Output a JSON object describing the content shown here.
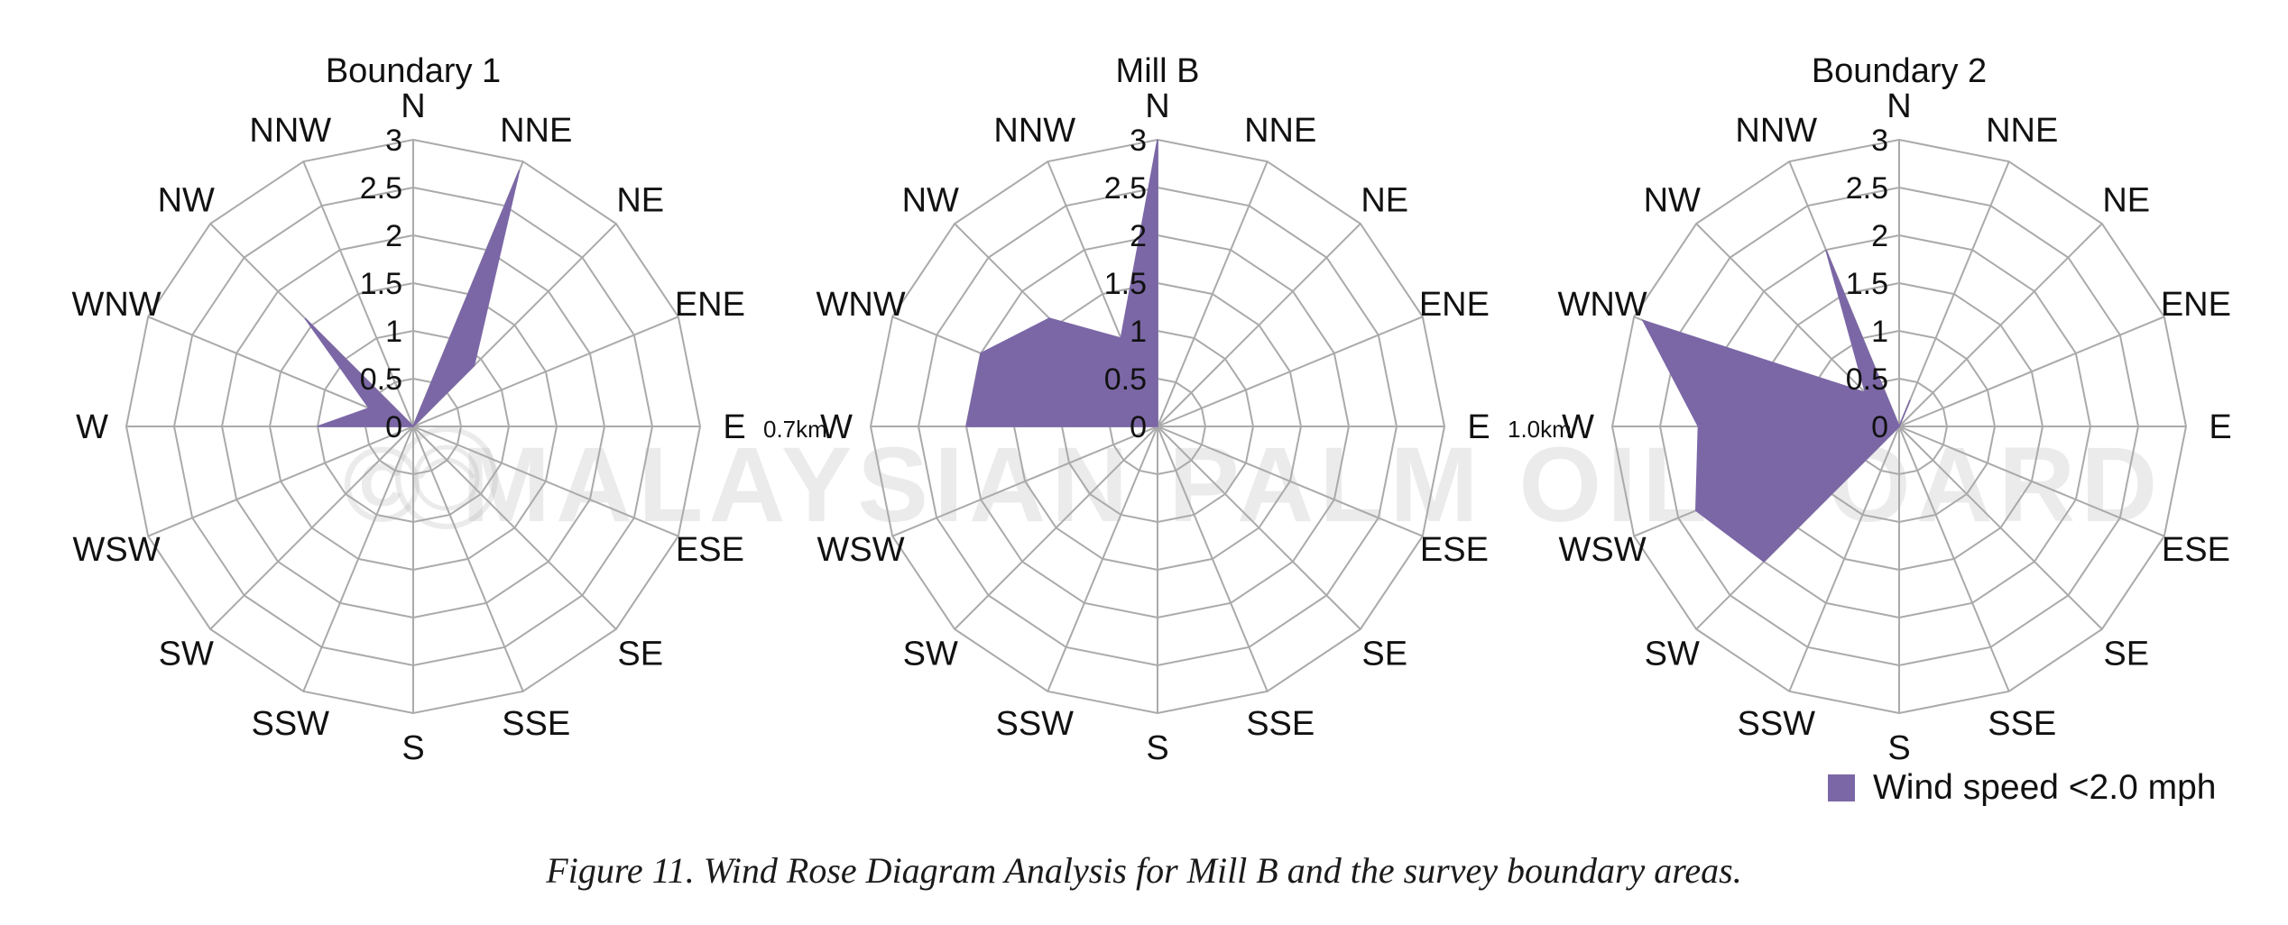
{
  "watermark": {
    "text": "© MALAYSIAN PALM OIL BOARD"
  },
  "legend": {
    "label": "Wind speed <2.0 mph",
    "color": "#7b67a6"
  },
  "caption": "Figure 11. Wind Rose Diagram Analysis for Mill B and the survey boundary areas.",
  "colors": {
    "fill": "#7b67a6",
    "grid": "#aaaaaa",
    "text": "#111111"
  },
  "chart_data": [
    {
      "type": "radar",
      "title": "Boundary 1",
      "directions": [
        "N",
        "NNE",
        "NE",
        "ENE",
        "E",
        "ESE",
        "SE",
        "SSE",
        "S",
        "SSW",
        "SW",
        "WSW",
        "W",
        "WNW",
        "NW",
        "NNW"
      ],
      "rlim": [
        0,
        3
      ],
      "ticks": [
        "0",
        "0.5",
        "1",
        "1.5",
        "2",
        "2.5",
        "3"
      ],
      "side_label": "0.7km",
      "series": [
        {
          "name": "Wind speed <2.0 mph",
          "values": [
            0,
            2.9,
            0.9,
            0,
            0,
            0,
            0,
            0,
            0,
            0,
            0,
            0,
            1.0,
            0.5,
            1.6,
            0
          ]
        }
      ]
    },
    {
      "type": "radar",
      "title": "Mill B",
      "directions": [
        "N",
        "NNE",
        "NE",
        "ENE",
        "E",
        "ESE",
        "SE",
        "SSE",
        "S",
        "SSW",
        "SW",
        "WSW",
        "W",
        "WNW",
        "NW",
        "NNW"
      ],
      "rlim": [
        0,
        3
      ],
      "ticks": [
        "0",
        "0.5",
        "1",
        "1.5",
        "2",
        "2.5",
        "3"
      ],
      "side_label": "1.0km",
      "series": [
        {
          "name": "Wind speed <2.0 mph",
          "values": [
            3.0,
            0,
            0,
            0,
            0,
            0,
            0,
            0,
            0,
            0,
            0,
            0,
            2.0,
            2.0,
            1.6,
            1.0
          ]
        }
      ]
    },
    {
      "type": "radar",
      "title": "Boundary 2",
      "directions": [
        "N",
        "NNE",
        "NE",
        "ENE",
        "E",
        "ESE",
        "SE",
        "SSE",
        "S",
        "SSW",
        "SW",
        "WSW",
        "W",
        "WNW",
        "NW",
        "NNW"
      ],
      "rlim": [
        0,
        3
      ],
      "ticks": [
        "0",
        "0.5",
        "1",
        "1.5",
        "2",
        "2.5",
        "3"
      ],
      "side_label": "",
      "series": [
        {
          "name": "Wind speed <2.0 mph",
          "values": [
            0,
            0.3,
            0,
            0,
            0,
            0,
            0,
            0,
            0,
            0,
            2.0,
            2.3,
            2.1,
            2.9,
            0.5,
            2.0
          ]
        }
      ]
    }
  ]
}
